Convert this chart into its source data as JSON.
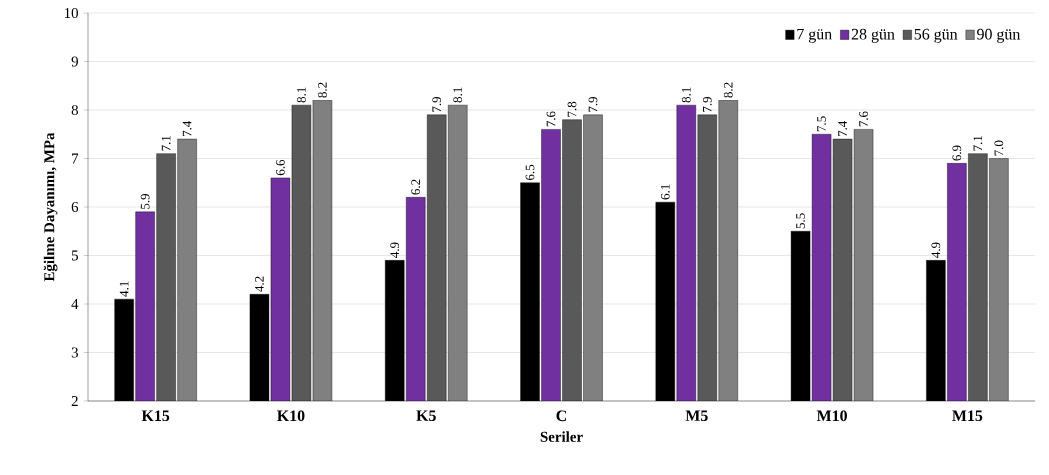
{
  "chart_data": {
    "type": "bar",
    "xlabel": "Seriler",
    "ylabel": "Eğilme Dayanımı, MPa",
    "categories": [
      "K15",
      "K10",
      "K5",
      "C",
      "M5",
      "M10",
      "M15"
    ],
    "series": [
      {
        "name": "7 gün",
        "color": "#000000",
        "values": [
          4.1,
          4.2,
          4.9,
          6.5,
          6.1,
          5.5,
          4.9
        ],
        "value_labels": [
          "4.1",
          "4.2",
          "4.9",
          "6.5",
          "6.1",
          "5.5",
          "4.9"
        ]
      },
      {
        "name": "28 gün",
        "color": "#7030a0",
        "values": [
          5.9,
          6.6,
          6.2,
          7.6,
          8.1,
          7.5,
          6.9
        ],
        "value_labels": [
          "5.9",
          "6.6",
          "6.2",
          "7.6",
          "8.1",
          "7.5",
          "6.9"
        ]
      },
      {
        "name": "56 gün",
        "color": "#595959",
        "values": [
          7.1,
          8.1,
          7.9,
          7.8,
          7.9,
          7.4,
          7.1
        ],
        "value_labels": [
          "7.1",
          "8.1",
          "7.9",
          "7.8",
          "7.9",
          "7.4",
          "7.1"
        ]
      },
      {
        "name": "90 gün",
        "color": "#808080",
        "values": [
          7.4,
          8.2,
          8.1,
          7.9,
          8.2,
          7.6,
          7.0
        ],
        "value_labels": [
          "7.4",
          "8.2",
          "8.1",
          "7.9",
          "8.2",
          "7.6",
          "7.0"
        ]
      }
    ],
    "ylim": [
      2,
      10
    ],
    "yticks": [
      2,
      3,
      4,
      5,
      6,
      7,
      8,
      9,
      10
    ],
    "grid": "y",
    "legend": "top right"
  }
}
